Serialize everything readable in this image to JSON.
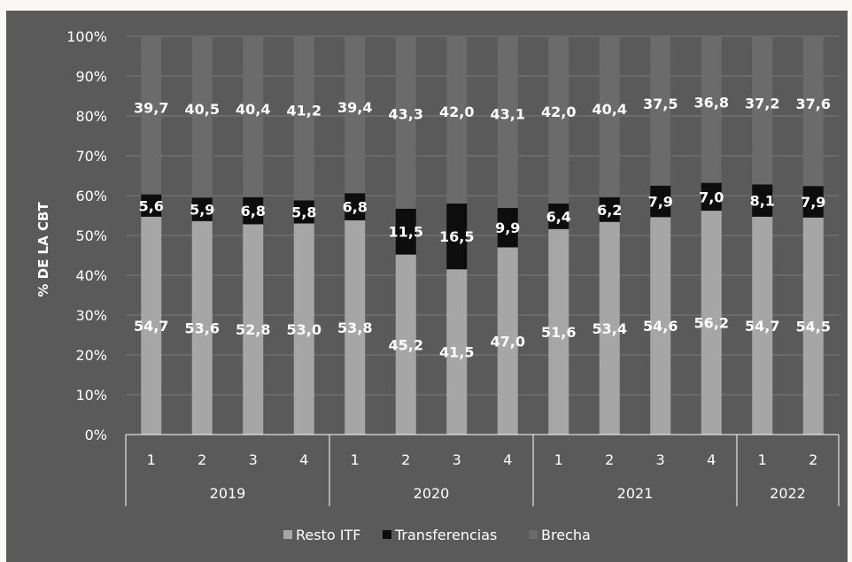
{
  "chart_data": {
    "type": "bar",
    "stacked": true,
    "ylabel": "% DE LA CBT",
    "ylim": [
      0,
      100
    ],
    "yticks": [
      "0%",
      "10%",
      "20%",
      "30%",
      "40%",
      "50%",
      "60%",
      "70%",
      "80%",
      "90%",
      "100%"
    ],
    "grid": true,
    "legend_position": "bottom",
    "categories": [
      "1",
      "2",
      "3",
      "4",
      "1",
      "2",
      "3",
      "4",
      "1",
      "2",
      "3",
      "4",
      "1",
      "2"
    ],
    "groups": [
      {
        "label": "2019",
        "count": 4
      },
      {
        "label": "2020",
        "count": 4
      },
      {
        "label": "2021",
        "count": 4
      },
      {
        "label": "2022",
        "count": 2
      }
    ],
    "series": [
      {
        "name": "Resto ITF",
        "color": "#a6a6a6",
        "values": [
          54.7,
          53.6,
          52.8,
          53.0,
          53.8,
          45.2,
          41.5,
          47.0,
          51.6,
          53.4,
          54.6,
          56.2,
          54.7,
          54.5
        ],
        "labels": [
          "54,7",
          "53,6",
          "52,8",
          "53,0",
          "53,8",
          "45,2",
          "41,5",
          "47,0",
          "51,6",
          "53,4",
          "54,6",
          "56,2",
          "54,7",
          "54,5"
        ]
      },
      {
        "name": "Transferencias",
        "color": "#0d0d0d",
        "values": [
          5.6,
          5.9,
          6.8,
          5.8,
          6.8,
          11.5,
          16.5,
          9.9,
          6.4,
          6.2,
          7.9,
          7.0,
          8.1,
          7.9
        ],
        "labels": [
          "5,6",
          "5,9",
          "6,8",
          "5,8",
          "6,8",
          "11,5",
          "16,5",
          "9,9",
          "6,4",
          "6,2",
          "7,9",
          "7,0",
          "8,1",
          "7,9"
        ]
      },
      {
        "name": "Brecha",
        "color": "#6b6b6b",
        "values": [
          39.7,
          40.5,
          40.4,
          41.2,
          39.4,
          43.3,
          42.0,
          43.1,
          42.0,
          40.4,
          37.5,
          36.8,
          37.2,
          37.6
        ],
        "labels": [
          "39,7",
          "40,5",
          "40,4",
          "41,2",
          "39,4",
          "43,3",
          "42,0",
          "43,1",
          "42,0",
          "40,4",
          "37,5",
          "36,8",
          "37,2",
          "37,6"
        ]
      }
    ]
  }
}
